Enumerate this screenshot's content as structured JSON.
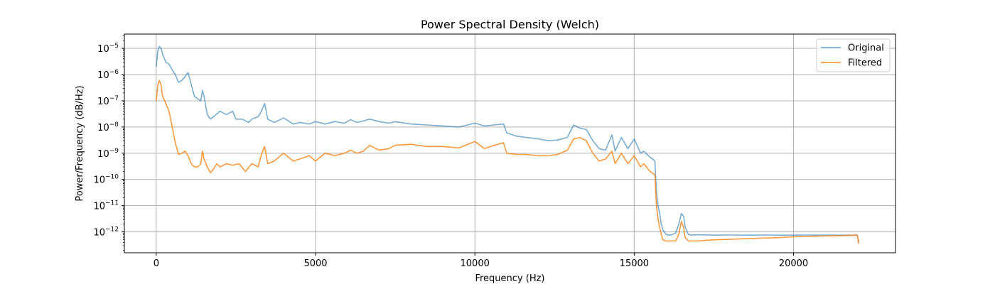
{
  "chart_data": {
    "type": "line",
    "title": "Power Spectral Density (Welch)",
    "xlabel": "Frequency (Hz)",
    "ylabel": "Power/Frequency (dB/Hz)",
    "xlim": [
      -1000,
      23200
    ],
    "ylim": [
      1.6e-13,
      3.5e-05
    ],
    "yscale": "log",
    "grid": true,
    "legend_position": "upper right",
    "x_ticks": [
      {
        "value": 0,
        "label": "0"
      },
      {
        "value": 5000,
        "label": "5000"
      },
      {
        "value": 10000,
        "label": "10000"
      },
      {
        "value": 15000,
        "label": "15000"
      },
      {
        "value": 20000,
        "label": "20000"
      }
    ],
    "y_ticks": [
      {
        "value": 1e-05,
        "base": "10",
        "exp": "−5"
      },
      {
        "value": 1e-06,
        "base": "10",
        "exp": "−6"
      },
      {
        "value": 1e-07,
        "base": "10",
        "exp": "−7"
      },
      {
        "value": 1e-08,
        "base": "10",
        "exp": "−8"
      },
      {
        "value": 1e-09,
        "base": "10",
        "exp": "−9"
      },
      {
        "value": 1e-10,
        "base": "10",
        "exp": "−10"
      },
      {
        "value": 1e-11,
        "base": "10",
        "exp": "−11"
      },
      {
        "value": 1e-12,
        "base": "10",
        "exp": "−12"
      }
    ],
    "series": [
      {
        "name": "Original",
        "color": "#1f77b4",
        "opacity": 0.6,
        "x": [
          0,
          50,
          100,
          150,
          200,
          300,
          400,
          500,
          600,
          700,
          800,
          900,
          950,
          1000,
          1100,
          1200,
          1300,
          1400,
          1450,
          1500,
          1600,
          1700,
          1800,
          2000,
          2200,
          2400,
          2500,
          2700,
          2900,
          3000,
          3200,
          3300,
          3400,
          3500,
          3700,
          4000,
          4300,
          4500,
          4800,
          5000,
          5300,
          5600,
          5900,
          6100,
          6300,
          6500,
          6700,
          7000,
          7300,
          7500,
          8000,
          8500,
          9000,
          9500,
          10000,
          10300,
          10600,
          10900,
          11000,
          11300,
          11600,
          12000,
          12300,
          12600,
          12900,
          13100,
          13300,
          13500,
          13700,
          13900,
          14100,
          14300,
          14400,
          14600,
          14800,
          15000,
          15200,
          15300,
          15500,
          15650,
          15700,
          15750,
          15800,
          15850,
          15900,
          16000,
          16100,
          16200,
          16300,
          16400,
          16480,
          16550,
          16600,
          16700,
          16800,
          17000,
          17500,
          18000,
          18500,
          19000,
          19500,
          20000,
          20500,
          21000,
          21500,
          22000,
          22050
        ],
        "y": [
          2e-06,
          8e-06,
          1.2e-05,
          1e-05,
          6e-06,
          3e-06,
          2.5e-06,
          1.5e-06,
          1e-06,
          5e-07,
          6e-07,
          8e-07,
          1e-06,
          1.2e-06,
          4e-07,
          1.5e-07,
          1.2e-07,
          1e-07,
          2.5e-07,
          1.5e-07,
          3e-08,
          2e-08,
          2.5e-08,
          4e-08,
          3e-08,
          4e-08,
          2e-08,
          2e-08,
          1.5e-08,
          2e-08,
          2.5e-08,
          4e-08,
          8e-08,
          2e-08,
          1.5e-08,
          2.2e-08,
          1.3e-08,
          1.5e-08,
          1.3e-08,
          1.6e-08,
          1.3e-08,
          1.6e-08,
          1.4e-08,
          1.9e-08,
          1.5e-08,
          1.7e-08,
          2e-08,
          1.6e-08,
          1.4e-08,
          1.6e-08,
          1.3e-08,
          1.2e-08,
          1.1e-08,
          1e-08,
          1.4e-08,
          1.1e-08,
          1.2e-08,
          1.3e-08,
          6e-09,
          4.5e-09,
          4e-09,
          3.5e-09,
          3e-09,
          3.2e-09,
          4e-09,
          1.2e-08,
          9e-09,
          8e-09,
          3e-09,
          1.5e-09,
          1.3e-09,
          5e-09,
          1.2e-09,
          4e-09,
          1.5e-09,
          3.5e-09,
          1e-09,
          1.2e-09,
          7e-10,
          5e-10,
          3e-11,
          1e-11,
          5e-12,
          2e-12,
          1.2e-12,
          8e-13,
          7.5e-13,
          8e-13,
          9e-13,
          2e-12,
          5e-12,
          4e-12,
          1.5e-12,
          8e-13,
          7.5e-13,
          7.8e-13,
          7.5e-13,
          7.6e-13,
          7.5e-13,
          7.6e-13,
          7.5e-13,
          7.5e-13,
          7.6e-13,
          7.5e-13,
          7.5e-13,
          7.5e-13,
          4e-13
        ]
      },
      {
        "name": "Filtered",
        "color": "#ff7f0e",
        "opacity": 0.8,
        "x": [
          0,
          50,
          100,
          150,
          200,
          300,
          400,
          500,
          600,
          700,
          800,
          900,
          1000,
          1100,
          1200,
          1300,
          1400,
          1450,
          1500,
          1600,
          1700,
          1800,
          1900,
          2000,
          2200,
          2400,
          2600,
          2800,
          3000,
          3200,
          3300,
          3400,
          3500,
          3700,
          4000,
          4300,
          4500,
          4800,
          5000,
          5300,
          5600,
          5900,
          6100,
          6300,
          6500,
          6700,
          7000,
          7300,
          7500,
          8000,
          8500,
          9000,
          9500,
          10000,
          10300,
          10600,
          10900,
          11000,
          11300,
          11600,
          12000,
          12300,
          12600,
          12900,
          13100,
          13300,
          13500,
          13700,
          13900,
          14100,
          14300,
          14400,
          14600,
          14800,
          15000,
          15200,
          15300,
          15500,
          15650,
          15700,
          15750,
          15800,
          15850,
          15900,
          16000,
          16100,
          16200,
          16300,
          16400,
          16480,
          16550,
          16600,
          16700,
          16800,
          17000,
          17500,
          18000,
          18500,
          19000,
          19500,
          20000,
          20500,
          21000,
          21500,
          22000,
          22050
        ],
        "y": [
          1e-07,
          4e-07,
          6e-07,
          4e-07,
          1.5e-07,
          8e-08,
          4e-08,
          1e-08,
          2.5e-09,
          9e-10,
          1e-09,
          1.2e-09,
          8e-10,
          4e-10,
          3e-10,
          3e-10,
          4e-10,
          1.2e-09,
          6e-10,
          3e-10,
          1.8e-10,
          2.5e-10,
          4e-10,
          3e-10,
          4e-10,
          3.5e-10,
          4e-10,
          2e-10,
          4e-10,
          3e-10,
          9e-10,
          1.8e-09,
          4e-10,
          5e-10,
          1e-09,
          5e-10,
          6e-10,
          8e-10,
          5e-10,
          1e-09,
          8e-10,
          1e-09,
          1.3e-09,
          1e-09,
          1.2e-09,
          2e-09,
          1.3e-09,
          1.5e-09,
          2e-09,
          2.2e-09,
          1.8e-09,
          1.8e-09,
          1.6e-09,
          2.8e-09,
          1.5e-09,
          2e-09,
          2.5e-09,
          1e-09,
          9e-10,
          9e-10,
          8e-10,
          8e-10,
          9e-10,
          1.3e-09,
          3.5e-09,
          4e-09,
          3e-09,
          1e-09,
          5e-10,
          6e-10,
          1.2e-09,
          4e-10,
          1e-09,
          4e-10,
          8e-10,
          3e-10,
          4e-10,
          2e-10,
          1.5e-10,
          1e-11,
          3e-12,
          1.5e-12,
          8e-13,
          5e-13,
          4.5e-13,
          4.5e-13,
          4.5e-13,
          4.5e-13,
          8e-13,
          2.5e-12,
          1.5e-12,
          6e-13,
          4.5e-13,
          4.5e-13,
          4.5e-13,
          5e-13,
          5.2e-13,
          5.5e-13,
          5.8e-13,
          6e-13,
          6.5e-13,
          6.8e-13,
          7e-13,
          7.2e-13,
          7.5e-13,
          3.5e-13
        ]
      }
    ]
  }
}
